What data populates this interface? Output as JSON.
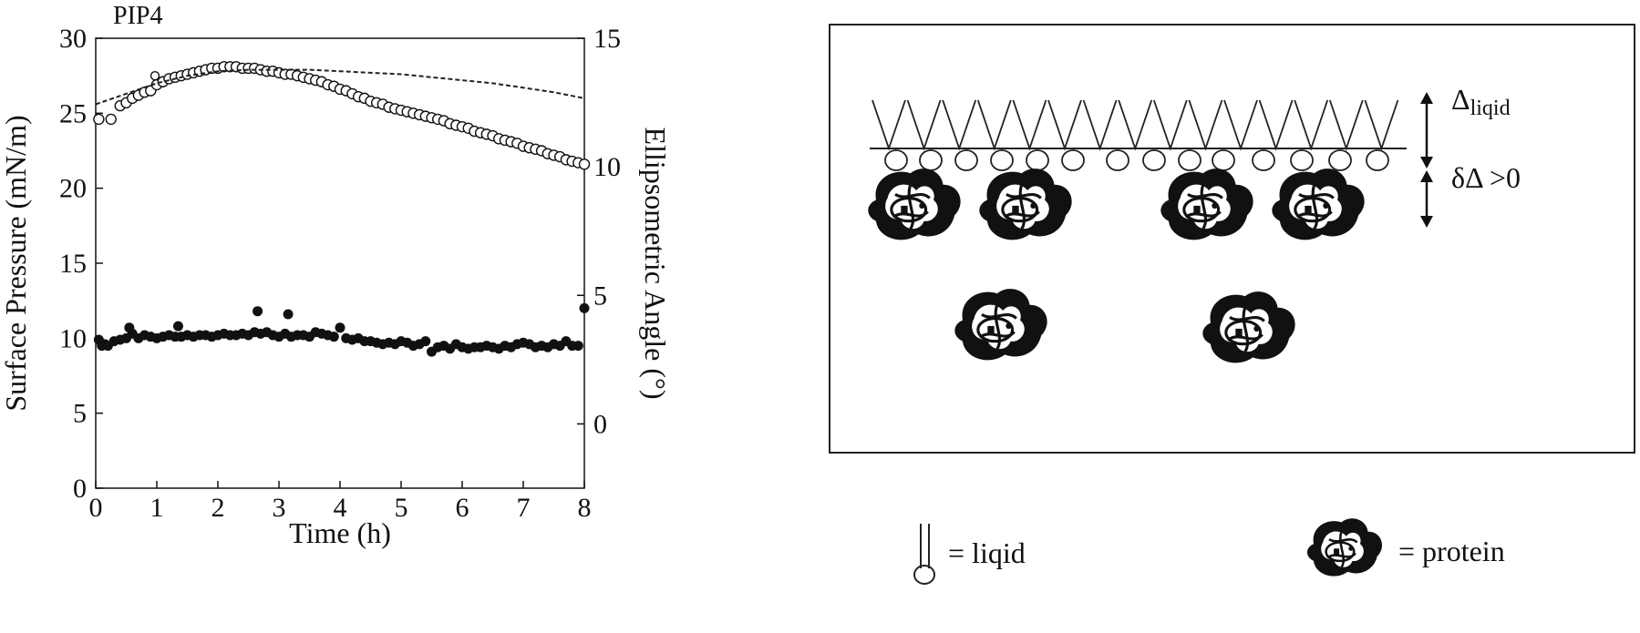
{
  "chart_data": {
    "type": "scatter",
    "title": "PIP4",
    "xlabel": "Time (h)",
    "ylabel": "Surface Pressure (mN/m)",
    "y2label": "Ellipsometric Angle (°)",
    "xlim": [
      0,
      8
    ],
    "ylim": [
      0,
      30
    ],
    "y2lim": [
      -2.5,
      15
    ],
    "x_ticks": [
      "0",
      "1",
      "2",
      "3",
      "4",
      "5",
      "6",
      "7",
      "8"
    ],
    "y_ticks": [
      "0",
      "5",
      "10",
      "15",
      "20",
      "25",
      "30"
    ],
    "y2_ticks": [
      "0",
      "5",
      "10",
      "15"
    ],
    "grid": false,
    "series": [
      {
        "marker": "open-circle",
        "axis": "left",
        "x": [
          0.05,
          0.25,
          0.4,
          0.5,
          0.6,
          0.7,
          0.8,
          0.9,
          1.0,
          1.1,
          1.2,
          1.3,
          1.4,
          1.5,
          1.6,
          1.7,
          1.8,
          1.9,
          2.0,
          2.1,
          2.2,
          2.3,
          2.4,
          2.5,
          2.6,
          2.7,
          2.8,
          2.9,
          3.0,
          3.1,
          3.2,
          3.3,
          3.4,
          3.5,
          3.6,
          3.7,
          3.8,
          3.9,
          4.0,
          4.1,
          4.2,
          4.3,
          4.4,
          4.5,
          4.6,
          4.7,
          4.8,
          4.9,
          5.0,
          5.1,
          5.2,
          5.3,
          5.4,
          5.5,
          5.6,
          5.7,
          5.8,
          5.9,
          6.0,
          6.1,
          6.2,
          6.3,
          6.4,
          6.5,
          6.6,
          6.7,
          6.8,
          6.9,
          7.0,
          7.1,
          7.2,
          7.3,
          7.4,
          7.5,
          7.6,
          7.7,
          7.8,
          7.9,
          8.0
        ],
        "y": [
          24.6,
          24.6,
          25.5,
          25.7,
          26.0,
          26.2,
          26.4,
          26.5,
          26.9,
          27.1,
          27.3,
          27.4,
          27.5,
          27.6,
          27.7,
          27.8,
          27.9,
          28.0,
          28.0,
          28.1,
          28.1,
          28.1,
          28.0,
          28.0,
          28.0,
          27.9,
          27.8,
          27.8,
          27.7,
          27.6,
          27.6,
          27.5,
          27.4,
          27.3,
          27.2,
          27.1,
          26.9,
          26.8,
          26.6,
          26.5,
          26.3,
          26.1,
          26.0,
          25.8,
          25.7,
          25.6,
          25.4,
          25.3,
          25.2,
          25.1,
          25.0,
          24.9,
          24.8,
          24.7,
          24.6,
          24.5,
          24.3,
          24.2,
          24.1,
          24.0,
          23.8,
          23.7,
          23.6,
          23.5,
          23.3,
          23.2,
          23.1,
          23.0,
          22.8,
          22.7,
          22.6,
          22.5,
          22.3,
          22.2,
          22.1,
          21.9,
          21.8,
          21.7,
          21.6
        ]
      },
      {
        "marker": "open-circle-small",
        "axis": "left",
        "x": [
          0.97
        ],
        "y": [
          27.5
        ]
      },
      {
        "marker": "dashed-line",
        "axis": "left",
        "x": [
          0.0,
          0.5,
          1.0,
          1.5,
          2.0,
          2.5,
          3.0,
          3.5,
          4.0,
          4.5,
          5.0,
          5.5,
          6.0,
          6.5,
          7.0,
          7.5,
          8.0
        ],
        "y": [
          25.6,
          26.3,
          27.0,
          27.5,
          27.8,
          27.9,
          27.9,
          27.9,
          27.8,
          27.7,
          27.6,
          27.4,
          27.2,
          27.0,
          26.7,
          26.4,
          26.0
        ]
      },
      {
        "marker": "filled-circle",
        "axis": "left",
        "x": [
          0.05,
          0.1,
          0.15,
          0.2,
          0.3,
          0.4,
          0.5,
          0.55,
          0.6,
          0.7,
          0.8,
          0.9,
          1.0,
          1.1,
          1.2,
          1.3,
          1.35,
          1.4,
          1.5,
          1.6,
          1.7,
          1.8,
          1.9,
          2.0,
          2.1,
          2.2,
          2.3,
          2.4,
          2.5,
          2.6,
          2.65,
          2.7,
          2.8,
          2.9,
          3.0,
          3.1,
          3.15,
          3.2,
          3.3,
          3.4,
          3.5,
          3.6,
          3.7,
          3.8,
          3.9,
          4.0,
          4.1,
          4.2,
          4.3,
          4.4,
          4.5,
          4.6,
          4.7,
          4.8,
          4.9,
          5.0,
          5.1,
          5.2,
          5.3,
          5.4,
          5.5,
          5.6,
          5.7,
          5.8,
          5.9,
          6.0,
          6.1,
          6.2,
          6.3,
          6.4,
          6.5,
          6.6,
          6.7,
          6.8,
          6.9,
          7.0,
          7.1,
          7.2,
          7.3,
          7.4,
          7.5,
          7.6,
          7.7,
          7.8,
          7.9,
          8.0
        ],
        "y": [
          9.9,
          9.5,
          9.6,
          9.5,
          9.8,
          9.9,
          10.0,
          10.7,
          10.3,
          10.0,
          10.2,
          10.1,
          10.0,
          10.1,
          10.2,
          10.1,
          10.8,
          10.1,
          10.2,
          10.1,
          10.2,
          10.2,
          10.1,
          10.2,
          10.3,
          10.2,
          10.2,
          10.3,
          10.2,
          10.4,
          11.8,
          10.3,
          10.4,
          10.2,
          10.1,
          10.3,
          11.6,
          10.1,
          10.2,
          10.2,
          10.1,
          10.4,
          10.3,
          10.2,
          10.1,
          10.7,
          10.0,
          9.9,
          10.0,
          9.8,
          9.8,
          9.7,
          9.6,
          9.7,
          9.6,
          9.8,
          9.7,
          9.5,
          9.6,
          9.8,
          9.1,
          9.4,
          9.5,
          9.3,
          9.6,
          9.4,
          9.3,
          9.4,
          9.4,
          9.5,
          9.4,
          9.3,
          9.5,
          9.4,
          9.6,
          9.7,
          9.6,
          9.4,
          9.5,
          9.4,
          9.6,
          9.5,
          9.8,
          9.5,
          9.5,
          12.0
        ]
      }
    ]
  },
  "diagram": {
    "delta_label_main": "Δ",
    "delta_label_sub": "liqid",
    "delta_change_label": "δΔ >0"
  },
  "legend": {
    "lipid_label": "= liqid",
    "protein_label": "= protein"
  },
  "colors": {
    "ink": "#111111",
    "background": "#ffffff"
  }
}
